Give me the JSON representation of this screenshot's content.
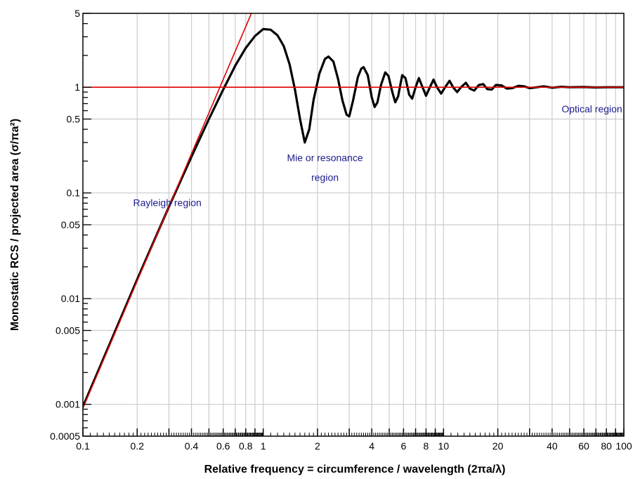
{
  "chart_data": {
    "type": "line",
    "xlabel": "Relative frequency  =  circumference / wavelength (2πa/λ)",
    "ylabel": "Monostatic RCS / projected area (σ/πa²)",
    "x_scale": "log",
    "y_scale": "log",
    "xlim": [
      0.1,
      100
    ],
    "ylim": [
      0.0005,
      5
    ],
    "grid": true,
    "x_tick_labels": [
      {
        "value": 0.1,
        "label": "0.1"
      },
      {
        "value": 0.2,
        "label": "0.2"
      },
      {
        "value": 0.4,
        "label": "0.4"
      },
      {
        "value": 0.6,
        "label": "0.6"
      },
      {
        "value": 0.8,
        "label": "0.8"
      },
      {
        "value": 1,
        "label": "1"
      },
      {
        "value": 2,
        "label": "2"
      },
      {
        "value": 4,
        "label": "4"
      },
      {
        "value": 6,
        "label": "6"
      },
      {
        "value": 8,
        "label": "8"
      },
      {
        "value": 10,
        "label": "10"
      },
      {
        "value": 20,
        "label": "20"
      },
      {
        "value": 40,
        "label": "40"
      },
      {
        "value": 60,
        "label": "60"
      },
      {
        "value": 80,
        "label": "80"
      },
      {
        "value": 100,
        "label": "100"
      }
    ],
    "y_tick_labels": [
      {
        "value": 0.0005,
        "label": "0.0005"
      },
      {
        "value": 0.001,
        "label": "0.001"
      },
      {
        "value": 0.005,
        "label": "0.005"
      },
      {
        "value": 0.01,
        "label": "0.01"
      },
      {
        "value": 0.05,
        "label": "0.05"
      },
      {
        "value": 0.1,
        "label": "0.1"
      },
      {
        "value": 0.5,
        "label": "0.5"
      },
      {
        "value": 1,
        "label": "1"
      },
      {
        "value": 5,
        "label": "5"
      }
    ],
    "series": [
      {
        "color": "#000000",
        "style": "thick",
        "points": [
          [
            0.1,
            0.00095
          ],
          [
            0.15,
            0.0048
          ],
          [
            0.2,
            0.0152
          ],
          [
            0.3,
            0.074
          ],
          [
            0.4,
            0.22
          ],
          [
            0.5,
            0.5
          ],
          [
            0.6,
            0.95
          ],
          [
            0.7,
            1.6
          ],
          [
            0.8,
            2.35
          ],
          [
            0.9,
            3.05
          ],
          [
            1.0,
            3.55
          ],
          [
            1.1,
            3.5
          ],
          [
            1.2,
            3.1
          ],
          [
            1.3,
            2.45
          ],
          [
            1.4,
            1.65
          ],
          [
            1.5,
            0.95
          ],
          [
            1.6,
            0.5
          ],
          [
            1.7,
            0.3
          ],
          [
            1.8,
            0.4
          ],
          [
            1.9,
            0.75
          ],
          [
            2.05,
            1.35
          ],
          [
            2.2,
            1.85
          ],
          [
            2.3,
            1.95
          ],
          [
            2.45,
            1.75
          ],
          [
            2.6,
            1.2
          ],
          [
            2.75,
            0.75
          ],
          [
            2.9,
            0.55
          ],
          [
            3.0,
            0.53
          ],
          [
            3.15,
            0.75
          ],
          [
            3.35,
            1.25
          ],
          [
            3.5,
            1.5
          ],
          [
            3.6,
            1.55
          ],
          [
            3.8,
            1.3
          ],
          [
            4.0,
            0.8
          ],
          [
            4.15,
            0.65
          ],
          [
            4.3,
            0.72
          ],
          [
            4.5,
            1.05
          ],
          [
            4.75,
            1.38
          ],
          [
            4.95,
            1.28
          ],
          [
            5.2,
            0.9
          ],
          [
            5.4,
            0.72
          ],
          [
            5.6,
            0.82
          ],
          [
            5.9,
            1.3
          ],
          [
            6.15,
            1.22
          ],
          [
            6.45,
            0.85
          ],
          [
            6.7,
            0.78
          ],
          [
            7.0,
            1.0
          ],
          [
            7.3,
            1.22
          ],
          [
            7.65,
            1.0
          ],
          [
            8.0,
            0.83
          ],
          [
            8.4,
            1.0
          ],
          [
            8.8,
            1.18
          ],
          [
            9.2,
            1.0
          ],
          [
            9.7,
            0.87
          ],
          [
            10.2,
            1.0
          ],
          [
            10.8,
            1.15
          ],
          [
            11.3,
            1.0
          ],
          [
            11.9,
            0.9
          ],
          [
            12.5,
            1.0
          ],
          [
            13.3,
            1.1
          ],
          [
            14.0,
            0.97
          ],
          [
            14.8,
            0.93
          ],
          [
            15.7,
            1.05
          ],
          [
            16.6,
            1.07
          ],
          [
            17.5,
            0.96
          ],
          [
            18.5,
            0.95
          ],
          [
            19.5,
            1.05
          ],
          [
            21,
            1.04
          ],
          [
            22.5,
            0.97
          ],
          [
            24,
            0.98
          ],
          [
            26,
            1.03
          ],
          [
            28,
            1.02
          ],
          [
            30,
            0.98
          ],
          [
            33,
            1.0
          ],
          [
            36,
            1.02
          ],
          [
            40,
            0.99
          ],
          [
            45,
            1.01
          ],
          [
            50,
            1.0
          ],
          [
            60,
            1.005
          ],
          [
            70,
            0.995
          ],
          [
            80,
            1.0
          ],
          [
            100,
            1.0
          ]
        ]
      },
      {
        "color": "#e00000",
        "style": "thin",
        "points": [
          [
            0.1,
            0.00092
          ],
          [
            0.86,
            5.0
          ]
        ]
      },
      {
        "color": "#e00000",
        "style": "thin",
        "points": [
          [
            0.1,
            1.0
          ],
          [
            100,
            1.0
          ]
        ]
      }
    ],
    "annotations": [
      {
        "text": "Rayleigh region",
        "x": 0.19,
        "y": 0.075,
        "anchor": "start",
        "color": "#1a1a8c"
      },
      {
        "text": "Mie or resonance",
        "x": 2.2,
        "y": 0.2,
        "anchor": "middle",
        "color": "#1a1a8c"
      },
      {
        "text": "region",
        "x": 2.2,
        "y": 0.13,
        "anchor": "middle",
        "color": "#1a1a8c"
      },
      {
        "text": "Optical region",
        "x": 98,
        "y": 0.58,
        "anchor": "end",
        "color": "#1a1a8c"
      }
    ]
  }
}
